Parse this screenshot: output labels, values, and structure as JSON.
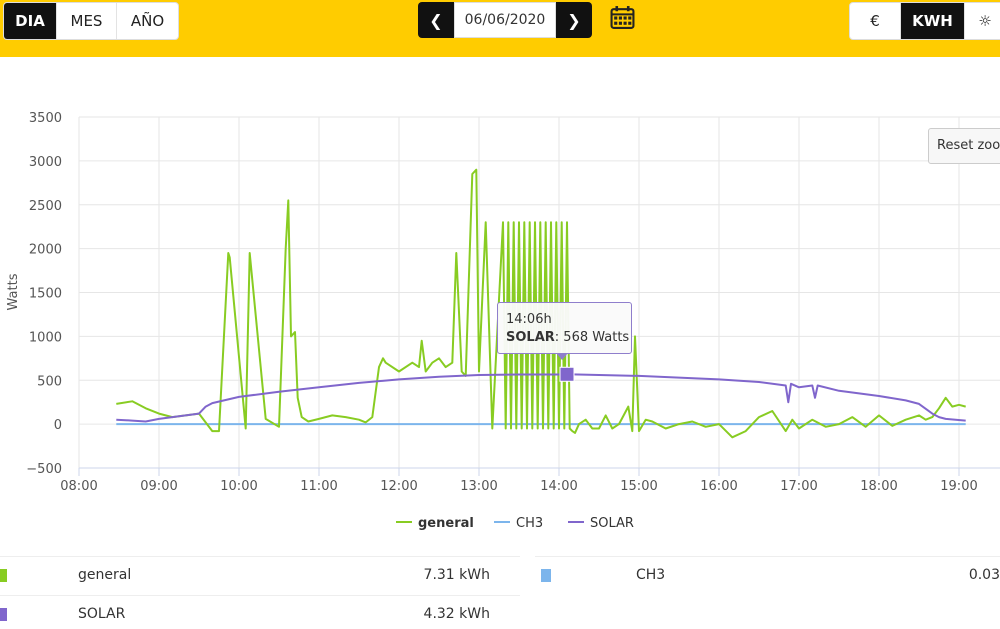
{
  "period_tabs": [
    {
      "label": "DIA",
      "active": true
    },
    {
      "label": "MES",
      "active": false
    },
    {
      "label": "AÑO",
      "active": false
    }
  ],
  "date": {
    "value": "06/06/2020",
    "prev_icon": "chevron-left-icon",
    "next_icon": "chevron-right-icon",
    "calendar_icon": "calendar-icon"
  },
  "unit_tabs": [
    {
      "label": "€",
      "active": false
    },
    {
      "label": "KWH",
      "active": true
    },
    {
      "label": "☼",
      "active": false,
      "icon": "sun-icon"
    }
  ],
  "reset_zoom_label": "Reset zoom",
  "tooltip": {
    "time": "14:06h",
    "series": "SOLAR",
    "value_text": ": 568 Watts"
  },
  "summary": [
    {
      "name": "general",
      "value": "7.31 kWh",
      "color": "#88cc22"
    },
    {
      "name": "CH3",
      "value": "0.03",
      "color": "#7cb5ec"
    },
    {
      "name": "SOLAR",
      "value": "4.32 kWh",
      "color": "#8066cc"
    }
  ],
  "chart_data": {
    "type": "line",
    "ylabel": "Watts",
    "xlabel": "",
    "ylim": [
      -500,
      3500
    ],
    "yticks": [
      "3500",
      "3000",
      "2500",
      "2000",
      "1500",
      "1000",
      "500",
      "0",
      "−500"
    ],
    "xticks": [
      "08:00",
      "09:00",
      "10:00",
      "11:00",
      "12:00",
      "13:00",
      "14:00",
      "15:00",
      "16:00",
      "17:00",
      "18:00",
      "19:00"
    ],
    "grid": true,
    "legend_position": "bottom",
    "series": [
      {
        "name": "general",
        "color": "#88cc22",
        "x": [
          "08:28",
          "08:40",
          "08:50",
          "09:00",
          "09:10",
          "09:20",
          "09:30",
          "09:40",
          "09:45",
          "09:52",
          "09:53",
          "10:05",
          "10:08",
          "10:20",
          "10:30",
          "10:35",
          "10:37",
          "10:39",
          "10:42",
          "10:44",
          "10:47",
          "10:52",
          "11:00",
          "11:10",
          "11:20",
          "11:30",
          "11:35",
          "11:40",
          "11:45",
          "11:48",
          "11:50",
          "12:00",
          "12:10",
          "12:15",
          "12:17",
          "12:20",
          "12:25",
          "12:30",
          "12:35",
          "12:40",
          "12:43",
          "12:47",
          "12:50",
          "12:55",
          "12:58",
          "13:00",
          "13:05",
          "13:10",
          "13:18",
          "13:20",
          "13:22",
          "13:24",
          "13:26",
          "13:28",
          "13:30",
          "13:32",
          "13:34",
          "13:36",
          "13:38",
          "13:40",
          "13:42",
          "13:44",
          "13:46",
          "13:48",
          "13:50",
          "13:52",
          "13:54",
          "13:56",
          "13:58",
          "14:00",
          "14:02",
          "14:04",
          "14:06",
          "14:08",
          "14:10",
          "14:12",
          "14:15",
          "14:20",
          "14:25",
          "14:30",
          "14:35",
          "14:40",
          "14:45",
          "14:52",
          "14:55",
          "14:57",
          "15:00",
          "15:05",
          "15:10",
          "15:20",
          "15:30",
          "15:40",
          "15:50",
          "16:00",
          "16:10",
          "16:20",
          "16:30",
          "16:40",
          "16:50",
          "16:55",
          "17:00",
          "17:10",
          "17:20",
          "17:30",
          "17:40",
          "17:50",
          "18:00",
          "18:10",
          "18:20",
          "18:30",
          "18:35",
          "18:40",
          "18:45",
          "18:50",
          "18:55",
          "19:00",
          "19:05"
        ],
        "y": [
          230,
          260,
          180,
          120,
          80,
          100,
          120,
          -80,
          -80,
          1950,
          1900,
          -50,
          1950,
          60,
          -30,
          2000,
          2550,
          1000,
          1050,
          300,
          80,
          30,
          60,
          100,
          80,
          50,
          20,
          80,
          650,
          750,
          700,
          600,
          700,
          650,
          950,
          600,
          700,
          750,
          650,
          700,
          1950,
          600,
          550,
          2850,
          2900,
          600,
          2300,
          -50,
          2300,
          -50,
          2300,
          -50,
          2300,
          -50,
          2300,
          -50,
          2300,
          -50,
          2300,
          -50,
          2300,
          -50,
          2300,
          -50,
          2300,
          -50,
          2300,
          -50,
          2300,
          -50,
          2300,
          -50,
          2300,
          -50,
          -80,
          -100,
          0,
          50,
          -50,
          -50,
          100,
          -50,
          0,
          200,
          -80,
          1000,
          -80,
          50,
          30,
          -50,
          0,
          30,
          -30,
          0,
          -150,
          -80,
          80,
          150,
          -80,
          50,
          -50,
          50,
          -30,
          0,
          80,
          -30,
          100,
          -20,
          50,
          100,
          50,
          80,
          180,
          300,
          200,
          220,
          200
        ]
      },
      {
        "name": "CH3",
        "color": "#7cb5ec",
        "x": [
          "08:28",
          "19:05"
        ],
        "y": [
          0,
          0
        ]
      },
      {
        "name": "SOLAR",
        "color": "#8066cc",
        "x": [
          "08:28",
          "08:40",
          "08:50",
          "09:00",
          "09:30",
          "09:35",
          "09:40",
          "10:00",
          "10:30",
          "11:00",
          "11:30",
          "12:00",
          "12:30",
          "13:00",
          "13:30",
          "14:00",
          "14:06",
          "14:30",
          "15:00",
          "15:30",
          "16:00",
          "16:30",
          "16:50",
          "16:52",
          "16:54",
          "17:00",
          "17:10",
          "17:12",
          "17:14",
          "17:30",
          "18:00",
          "18:20",
          "18:30",
          "18:40",
          "18:45",
          "18:50",
          "19:05"
        ],
        "y": [
          50,
          40,
          30,
          60,
          120,
          200,
          240,
          310,
          370,
          420,
          470,
          510,
          540,
          560,
          565,
          565,
          568,
          560,
          550,
          530,
          510,
          480,
          440,
          250,
          460,
          420,
          440,
          300,
          440,
          380,
          320,
          270,
          230,
          120,
          80,
          60,
          40
        ]
      }
    ]
  }
}
